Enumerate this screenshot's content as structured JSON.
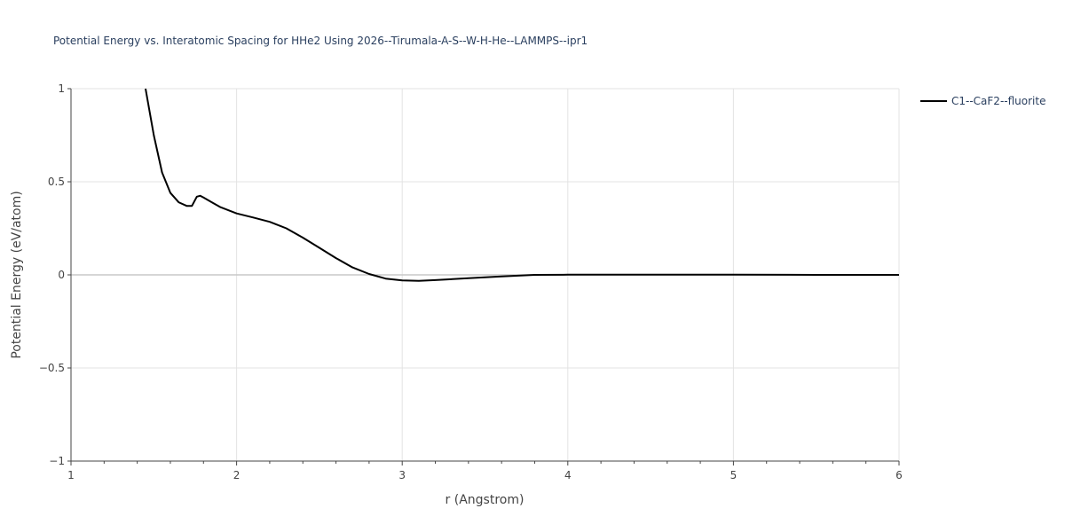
{
  "chart_data": {
    "type": "line",
    "title": "Potential Energy vs. Interatomic Spacing for HHe2 Using 2026--Tirumala-A-S--W-H-He--LAMMPS--ipr1",
    "xlabel": "r (Angstrom)",
    "ylabel": "Potential Energy (eV/atom)",
    "xlim": [
      1,
      6
    ],
    "ylim": [
      -1,
      1
    ],
    "xticks": [
      1,
      2,
      3,
      4,
      5,
      6
    ],
    "xtick_labels": [
      "1",
      "2",
      "3",
      "4",
      "5",
      "6"
    ],
    "yticks": [
      -1,
      -0.5,
      0,
      0.5,
      1
    ],
    "ytick_labels": [
      "−1",
      "−0.5",
      "0",
      "0.5",
      "1"
    ],
    "grid": true,
    "legend_position": "top-right outside",
    "series": [
      {
        "name": "C1--CaF2--fluorite",
        "color": "#000000",
        "x": [
          1.45,
          1.5,
          1.55,
          1.6,
          1.65,
          1.7,
          1.73,
          1.76,
          1.78,
          1.8,
          1.85,
          1.9,
          2.0,
          2.1,
          2.2,
          2.3,
          2.4,
          2.5,
          2.6,
          2.7,
          2.8,
          2.9,
          3.0,
          3.1,
          3.2,
          3.4,
          3.6,
          3.8,
          4.0,
          4.2,
          4.5,
          5.0,
          5.5,
          6.0
        ],
        "y": [
          1.0,
          0.75,
          0.55,
          0.44,
          0.39,
          0.37,
          0.37,
          0.42,
          0.425,
          0.415,
          0.39,
          0.365,
          0.33,
          0.308,
          0.285,
          0.25,
          0.2,
          0.145,
          0.09,
          0.04,
          0.005,
          -0.02,
          -0.03,
          -0.032,
          -0.028,
          -0.018,
          -0.008,
          0.0,
          0.001,
          0.001,
          0.001,
          0.001,
          0.0,
          0.0
        ]
      }
    ]
  }
}
